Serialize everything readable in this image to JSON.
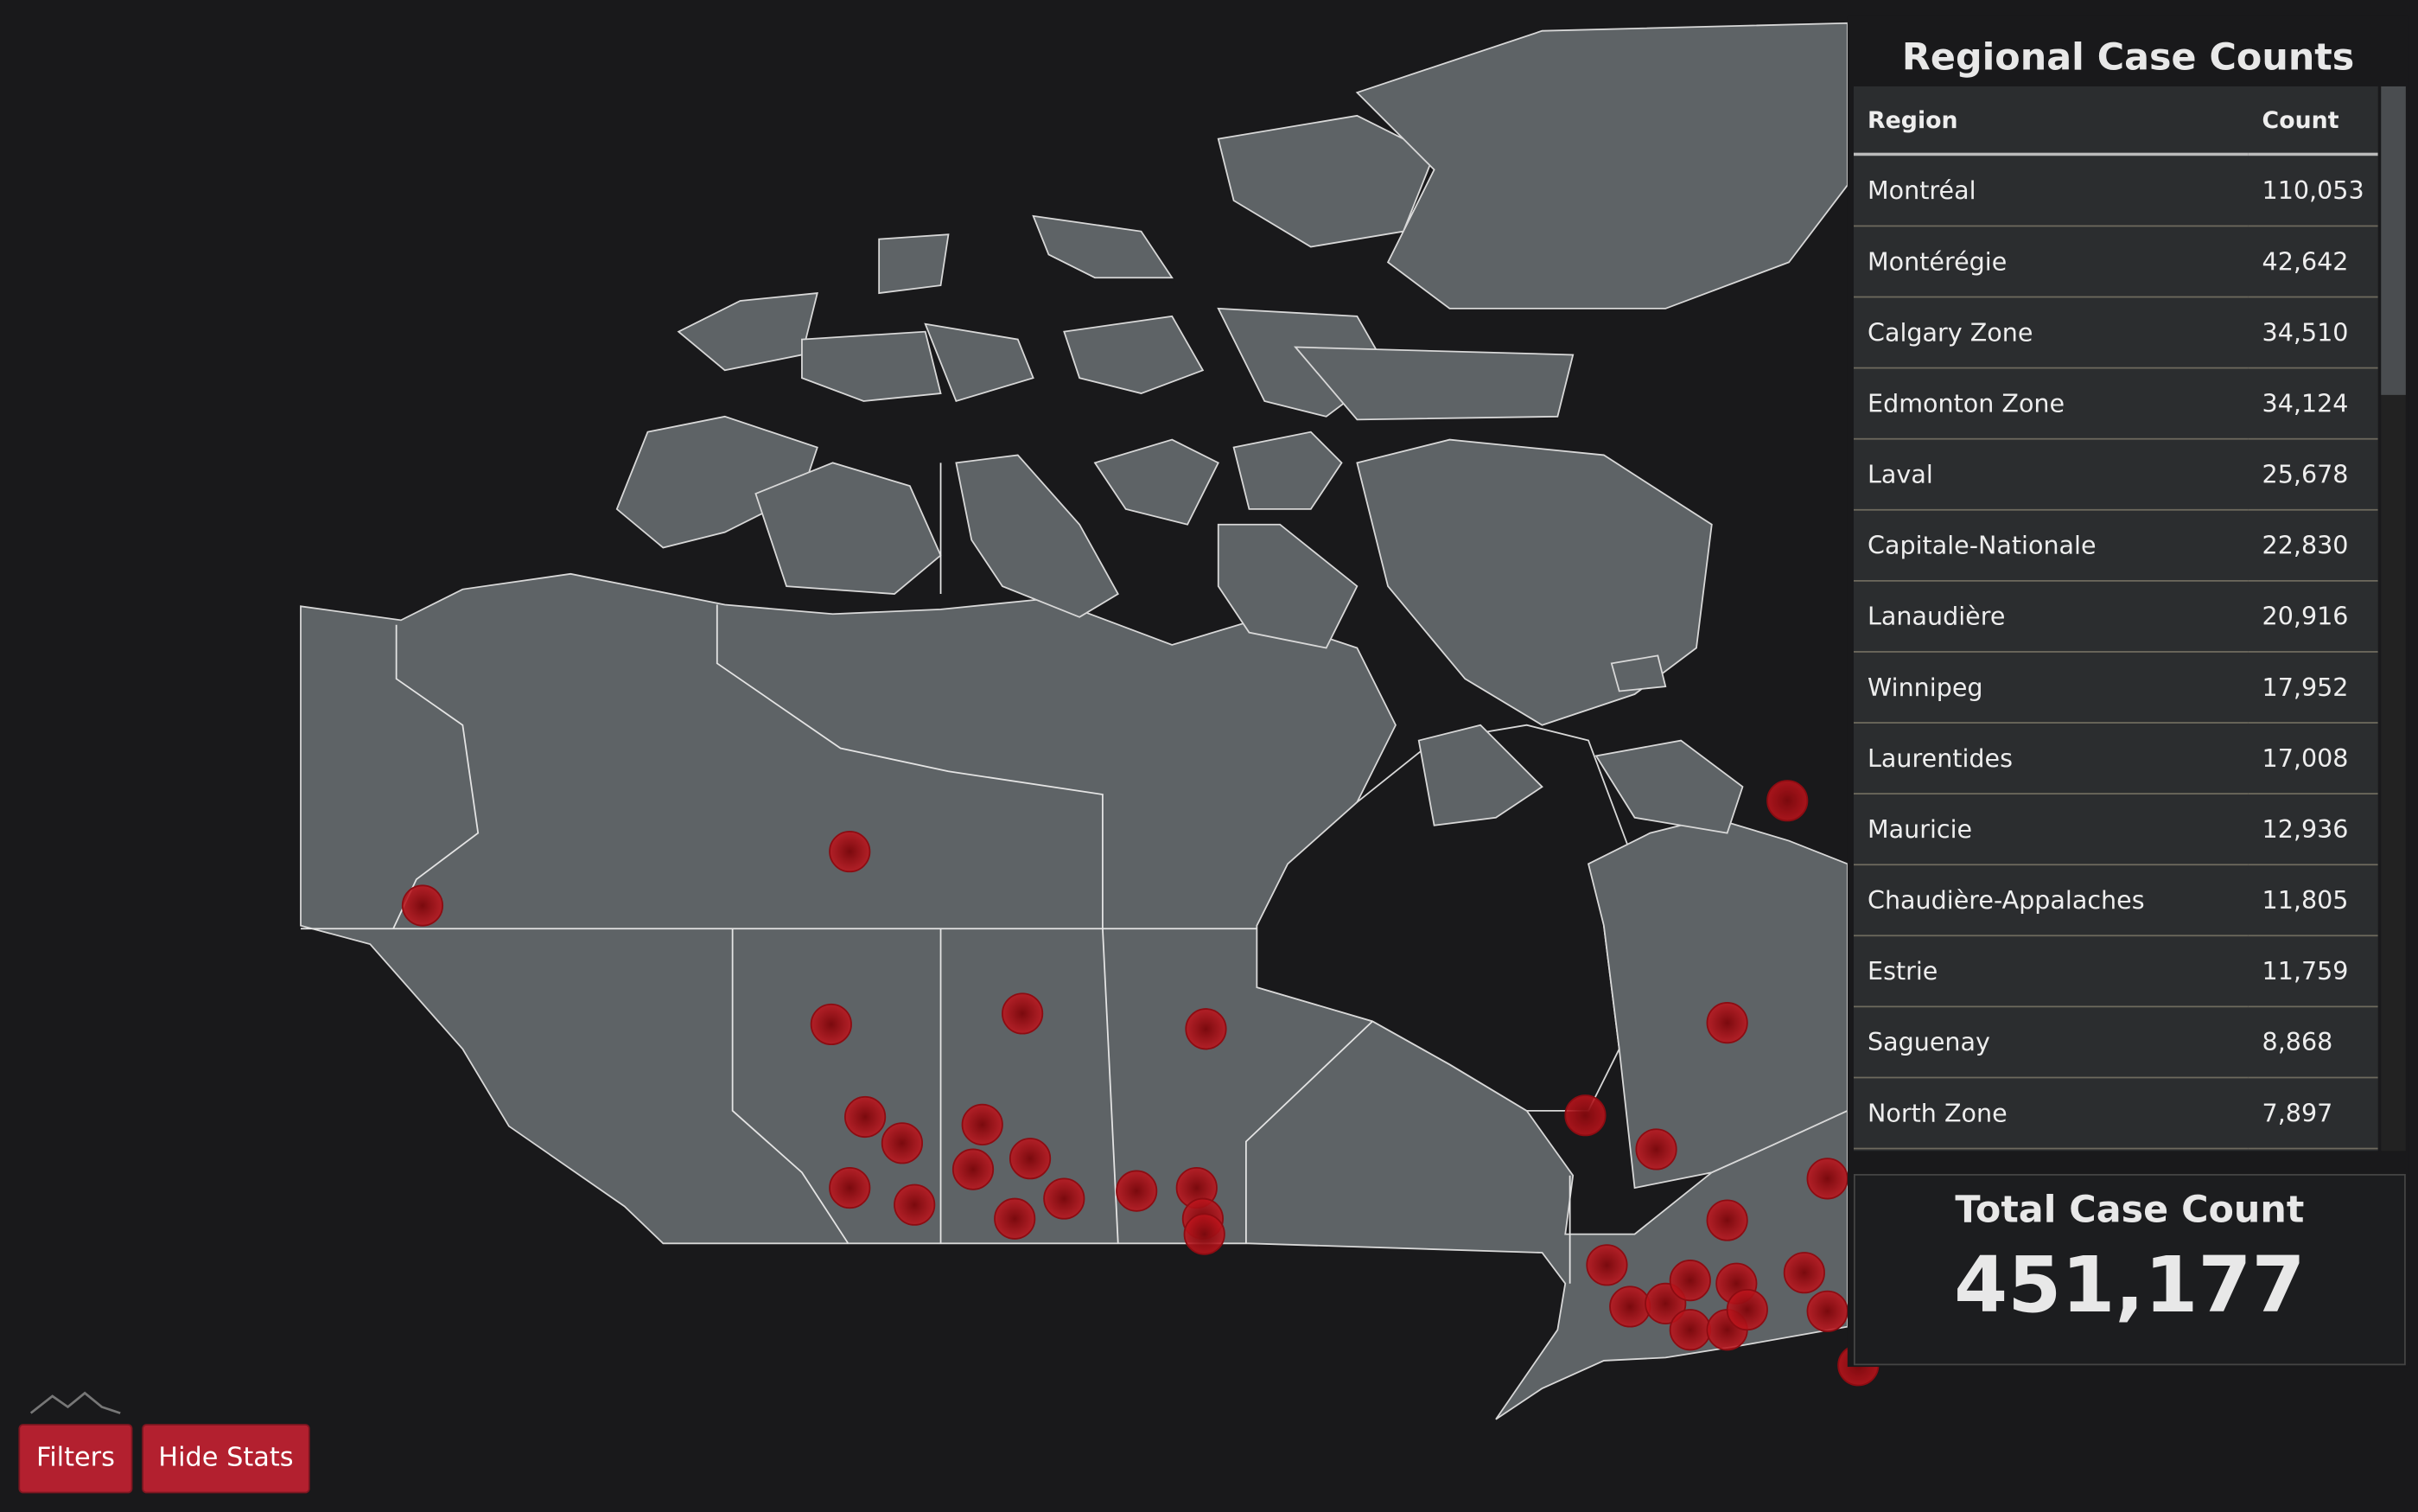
{
  "stats_panel": {
    "title": "Regional Case Counts",
    "table": {
      "header": [
        "Region",
        "Count"
      ],
      "rows": [
        [
          "Montréal",
          "110,053"
        ],
        [
          "Montérégie",
          "42,642"
        ],
        [
          "Calgary Zone",
          "34,510"
        ],
        [
          "Edmonton Zone",
          "34,124"
        ],
        [
          "Laval",
          "25,678"
        ],
        [
          "Capitale-Nationale",
          "22,830"
        ],
        [
          "Lanaudière",
          "20,916"
        ],
        [
          "Winnipeg",
          "17,952"
        ],
        [
          "Laurentides",
          "17,008"
        ],
        [
          "Mauricie",
          "12,936"
        ],
        [
          "Chaudière-Appalaches",
          "11,805"
        ],
        [
          "Estrie",
          "11,759"
        ],
        [
          "Saguenay",
          "8,868"
        ],
        [
          "North Zone",
          "7,897"
        ]
      ]
    },
    "total": {
      "label": "Total Case Count",
      "value": "451,177"
    }
  },
  "buttons": [
    "Filters",
    "Hide Stats"
  ]
}
